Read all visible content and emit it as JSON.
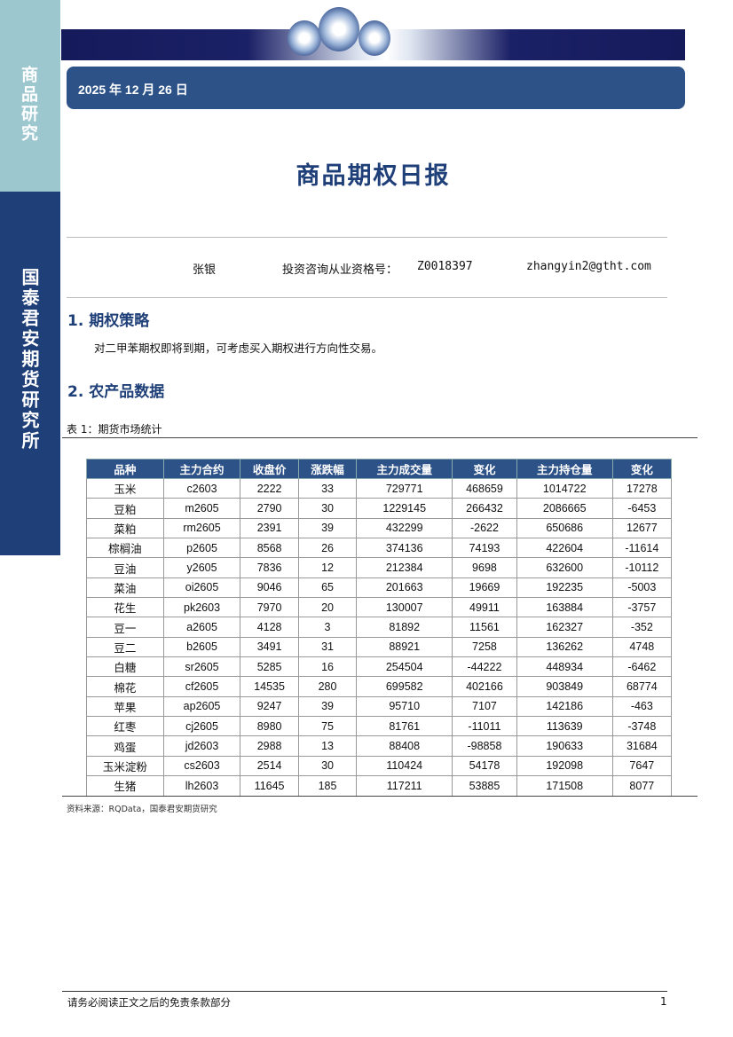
{
  "sidebar": {
    "top_label": "商品研究",
    "bottom_label": "国泰君安期货研究所"
  },
  "header": {
    "date": "2025 年 12 月 26 日"
  },
  "title": "商品期权日报",
  "author": {
    "name": "张银",
    "cert_label": "投资咨询从业资格号：",
    "cert_no": "Z0018397",
    "email": "zhangyin2@gtht.com"
  },
  "sections": [
    {
      "heading": "1.  期权策略",
      "text": "对二甲苯期权即将到期，可考虑买入期权进行方向性交易。"
    },
    {
      "heading": "2.  农产品数据"
    }
  ],
  "table": {
    "caption": "表 1：期货市场统计",
    "headers": [
      "品种",
      "主力合约",
      "收盘价",
      "涨跌幅",
      "主力成交量",
      "变化",
      "主力持仓量",
      "变化"
    ],
    "rows": [
      [
        "玉米",
        "c2603",
        "2222",
        "33",
        "729771",
        "468659",
        "1014722",
        "17278"
      ],
      [
        "豆粕",
        "m2605",
        "2790",
        "30",
        "1229145",
        "266432",
        "2086665",
        "-6453"
      ],
      [
        "菜粕",
        "rm2605",
        "2391",
        "39",
        "432299",
        "-2622",
        "650686",
        "12677"
      ],
      [
        "棕榈油",
        "p2605",
        "8568",
        "26",
        "374136",
        "74193",
        "422604",
        "-11614"
      ],
      [
        "豆油",
        "y2605",
        "7836",
        "12",
        "212384",
        "9698",
        "632600",
        "-10112"
      ],
      [
        "菜油",
        "oi2605",
        "9046",
        "65",
        "201663",
        "19669",
        "192235",
        "-5003"
      ],
      [
        "花生",
        "pk2603",
        "7970",
        "20",
        "130007",
        "49911",
        "163884",
        "-3757"
      ],
      [
        "豆一",
        "a2605",
        "4128",
        "3",
        "81892",
        "11561",
        "162327",
        "-352"
      ],
      [
        "豆二",
        "b2605",
        "3491",
        "31",
        "88921",
        "7258",
        "136262",
        "4748"
      ],
      [
        "白糖",
        "sr2605",
        "5285",
        "16",
        "254504",
        "-44222",
        "448934",
        "-6462"
      ],
      [
        "棉花",
        "cf2605",
        "14535",
        "280",
        "699582",
        "402166",
        "903849",
        "68774"
      ],
      [
        "苹果",
        "ap2605",
        "9247",
        "39",
        "95710",
        "7107",
        "142186",
        "-463"
      ],
      [
        "红枣",
        "cj2605",
        "8980",
        "75",
        "81761",
        "-11011",
        "113639",
        "-3748"
      ],
      [
        "鸡蛋",
        "jd2603",
        "2988",
        "13",
        "88408",
        "-98858",
        "190633",
        "31684"
      ],
      [
        "玉米淀粉",
        "cs2603",
        "2514",
        "30",
        "110424",
        "54178",
        "192098",
        "7647"
      ],
      [
        "生猪",
        "lh2603",
        "11645",
        "185",
        "117211",
        "53885",
        "171508",
        "8077"
      ]
    ],
    "source": "资料来源：RQData，国泰君安期货研究"
  },
  "footer": {
    "disclaimer": "请务必阅读正文之后的免责条款部分",
    "page": "1"
  },
  "colors": {
    "brand": "#1f3f78",
    "header_bar": "#2c5288",
    "sidebar_top": "#9cc7cf"
  }
}
